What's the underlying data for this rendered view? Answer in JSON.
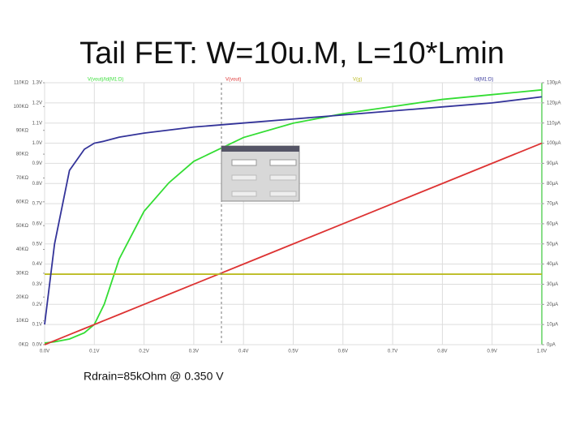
{
  "chart_data": {
    "type": "line",
    "title": "Tail FET: W=10u.M, L=10*Lmin",
    "annotation": "Rdrain=85kOhm @ 0.350 V",
    "x": [
      0,
      0.02,
      0.05,
      0.08,
      0.1,
      0.12,
      0.15,
      0.2,
      0.25,
      0.3,
      0.35,
      0.4,
      0.5,
      0.6,
      0.7,
      0.8,
      0.9,
      1.0
    ],
    "xlim": [
      0,
      1.0
    ],
    "xticks": [
      {
        "value": 0,
        "label": "0.0V"
      },
      {
        "value": 0.1,
        "label": "0.1V"
      },
      {
        "value": 0.2,
        "label": "0.2V"
      },
      {
        "value": 0.3,
        "label": "0.3V"
      },
      {
        "value": 0.4,
        "label": "0.4V"
      },
      {
        "value": 0.5,
        "label": "0.5V"
      },
      {
        "value": 0.6,
        "label": "0.6V"
      },
      {
        "value": 0.7,
        "label": "0.7V"
      },
      {
        "value": 0.8,
        "label": "0.8V"
      },
      {
        "value": 0.9,
        "label": "0.9V"
      },
      {
        "value": 1.0,
        "label": "1.0V"
      }
    ],
    "ylim": [
      0,
      1.3
    ],
    "yticks": [
      {
        "value": 0,
        "label": "0.0V"
      },
      {
        "value": 0.1,
        "label": "0.1V"
      },
      {
        "value": 0.2,
        "label": "0.2V"
      },
      {
        "value": 0.3,
        "label": "0.3V"
      },
      {
        "value": 0.4,
        "label": "0.4V"
      },
      {
        "value": 0.5,
        "label": "0.5V"
      },
      {
        "value": 0.6,
        "label": "0.6V"
      },
      {
        "value": 0.7,
        "label": "0.7V"
      },
      {
        "value": 0.8,
        "label": "0.8V"
      },
      {
        "value": 0.9,
        "label": "0.9V"
      },
      {
        "value": 1.0,
        "label": "1.0V"
      },
      {
        "value": 1.1,
        "label": "1.1V"
      },
      {
        "value": 1.2,
        "label": "1.2V"
      },
      {
        "value": 1.3,
        "label": "1.3V"
      }
    ],
    "y2lim": [
      0,
      130
    ],
    "y2ticks": [
      {
        "value": 0,
        "label": "0µA"
      },
      {
        "value": 10,
        "label": "10µA"
      },
      {
        "value": 20,
        "label": "20µA"
      },
      {
        "value": 30,
        "label": "30µA"
      },
      {
        "value": 40,
        "label": "40µA"
      },
      {
        "value": 50,
        "label": "50µA"
      },
      {
        "value": 60,
        "label": "60µA"
      },
      {
        "value": 70,
        "label": "70µA"
      },
      {
        "value": 80,
        "label": "80µA"
      },
      {
        "value": 90,
        "label": "90µA"
      },
      {
        "value": 100,
        "label": "100µA"
      },
      {
        "value": 110,
        "label": "110µA"
      },
      {
        "value": 120,
        "label": "120µA"
      },
      {
        "value": 130,
        "label": "130µA"
      }
    ],
    "y3lim": [
      0,
      110000
    ],
    "y3ticks": [
      {
        "value": 0,
        "label": "0KΩ"
      },
      {
        "value": 10000,
        "label": "10KΩ"
      },
      {
        "value": 20000,
        "label": "20KΩ"
      },
      {
        "value": 30000,
        "label": "30KΩ"
      },
      {
        "value": 40000,
        "label": "40KΩ"
      },
      {
        "value": 50000,
        "label": "50KΩ"
      },
      {
        "value": 60000,
        "label": "60KΩ"
      },
      {
        "value": 70000,
        "label": "70KΩ"
      },
      {
        "value": 80000,
        "label": "80KΩ"
      },
      {
        "value": 90000,
        "label": "90KΩ"
      },
      {
        "value": 100000,
        "label": "100KΩ"
      },
      {
        "value": 110000,
        "label": "110KΩ"
      }
    ],
    "grid": true,
    "series": [
      {
        "name": "V(vout)/Id(M1:D)",
        "color": "#33dd33",
        "axis": "y3",
        "values": [
          700,
          1200,
          2400,
          5000,
          8500,
          17000,
          36000,
          56000,
          68000,
          77000,
          82000,
          87000,
          93000,
          97000,
          100000,
          103000,
          105000,
          107000
        ]
      },
      {
        "name": "V(vout)",
        "color": "#dd3333",
        "axis": "y",
        "values": [
          0,
          0.02,
          0.05,
          0.08,
          0.1,
          0.12,
          0.15,
          0.2,
          0.25,
          0.3,
          0.35,
          0.4,
          0.5,
          0.6,
          0.7,
          0.8,
          0.9,
          1.0
        ]
      },
      {
        "name": "V(g)",
        "color": "#bbbb22",
        "axis": "y",
        "values": [
          0.35,
          0.35,
          0.35,
          0.35,
          0.35,
          0.35,
          0.35,
          0.35,
          0.35,
          0.35,
          0.35,
          0.35,
          0.35,
          0.35,
          0.35,
          0.35,
          0.35,
          0.35
        ]
      },
      {
        "name": "Id(M1:D)",
        "color": "#333399",
        "axis": "y2",
        "values": [
          10,
          50,
          86.5,
          97,
          100,
          101,
          103,
          105,
          106.5,
          108,
          109,
          110,
          112,
          114,
          116,
          118,
          120,
          123
        ]
      }
    ]
  }
}
